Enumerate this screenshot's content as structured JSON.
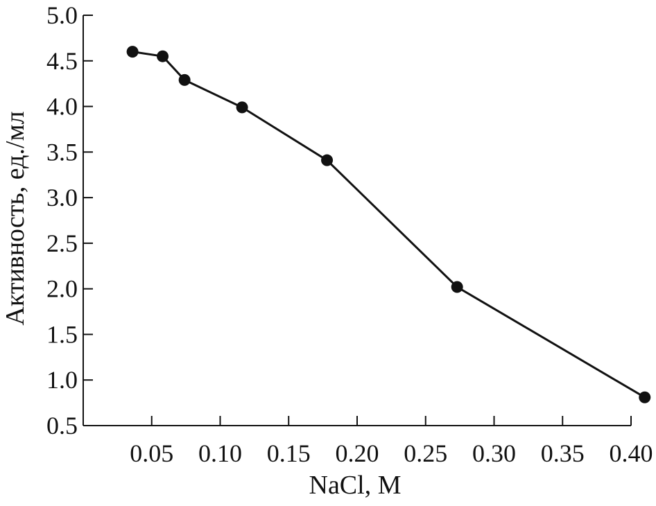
{
  "chart_data": {
    "type": "line",
    "xlabel": "NaCl, M",
    "ylabel": "Активность, ед./мл",
    "xlim": [
      0.0,
      0.4
    ],
    "ylim": [
      0.5,
      5.0
    ],
    "x_ticks": [
      0.05,
      0.1,
      0.15,
      0.2,
      0.25,
      0.3,
      0.35,
      0.4
    ],
    "x_tick_labels": [
      "0.05",
      "0.10",
      "0.15",
      "0.20",
      "0.25",
      "0.30",
      "0.35",
      "0.40"
    ],
    "y_ticks": [
      0.5,
      1.0,
      1.5,
      2.0,
      2.5,
      3.0,
      3.5,
      4.0,
      4.5,
      5.0
    ],
    "y_tick_labels": [
      "0.5",
      "1.0",
      "1.5",
      "2.0",
      "2.5",
      "3.0",
      "3.5",
      "4.0",
      "4.5",
      "5.0"
    ],
    "grid": false,
    "legend": "none",
    "series": [
      {
        "x": [
          0.036,
          0.058,
          0.074,
          0.116,
          0.178,
          0.273,
          0.41
        ],
        "y": [
          4.6,
          4.55,
          4.29,
          3.99,
          3.41,
          2.02,
          0.81
        ],
        "color": "#111111",
        "marker": "filled-circle"
      }
    ]
  }
}
